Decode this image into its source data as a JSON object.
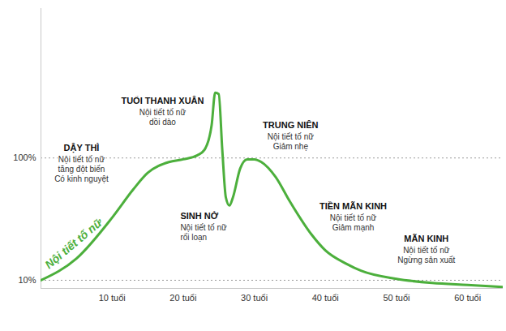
{
  "chart_data": {
    "type": "line",
    "x": [
      0,
      5,
      10,
      13,
      15,
      18,
      20,
      22,
      23,
      24,
      24.5,
      25,
      25.5,
      26,
      26.5,
      27,
      28,
      29,
      30,
      31,
      33,
      35,
      38,
      40,
      43,
      45,
      50,
      55,
      60,
      65
    ],
    "series": [
      {
        "name": "Nội tiết tố nữ",
        "color": "#4caf3c",
        "values": [
          10,
          26,
          56,
          77,
          89,
          97,
          99,
          102,
          106,
          124,
          148,
          147,
          106,
          71,
          65,
          71,
          92,
          99,
          99,
          97,
          86,
          68,
          44,
          32,
          22,
          17,
          11,
          8,
          6.5,
          5
        ]
      }
    ],
    "xlim": [
      0,
      65
    ],
    "xticks": [
      {
        "value": 10,
        "label": "10 tuổi"
      },
      {
        "value": 20,
        "label": "20 tuổi"
      },
      {
        "value": 30,
        "label": "30 tuổi"
      },
      {
        "value": 40,
        "label": "40 tuổi"
      },
      {
        "value": 50,
        "label": "50 tuổi"
      },
      {
        "value": 60,
        "label": "60 tuổi"
      }
    ],
    "ylim": [
      4,
      210
    ],
    "yticks": [
      {
        "value": 10,
        "label": "10%"
      },
      {
        "value": 100,
        "label": "100%"
      }
    ],
    "grid": true,
    "annotations": [
      {
        "title": "DẬY THÌ",
        "text": [
          "Nội tiết tố nữ",
          "tăng đột biến",
          "Có kinh nguyệt"
        ]
      },
      {
        "title": "TUỔI THANH XUÂN",
        "text": [
          "Nội tiết tố nữ",
          "dồi dào"
        ]
      },
      {
        "title": "SINH NỞ",
        "text": [
          "Nội tiết tố nữ",
          "rối loạn"
        ]
      },
      {
        "title": "TRUNG NIÊN",
        "text": [
          "Nội tiết tố nữ",
          "Giảm nhẹ"
        ]
      },
      {
        "title": "TIỀN MÃN KINH",
        "text": [
          "Nội tiết tố nữ",
          "Giảm mạnh"
        ]
      },
      {
        "title": "MÃN KINH",
        "text": [
          "Nội tiết tố nữ",
          "Ngừng sản xuất"
        ]
      }
    ]
  }
}
